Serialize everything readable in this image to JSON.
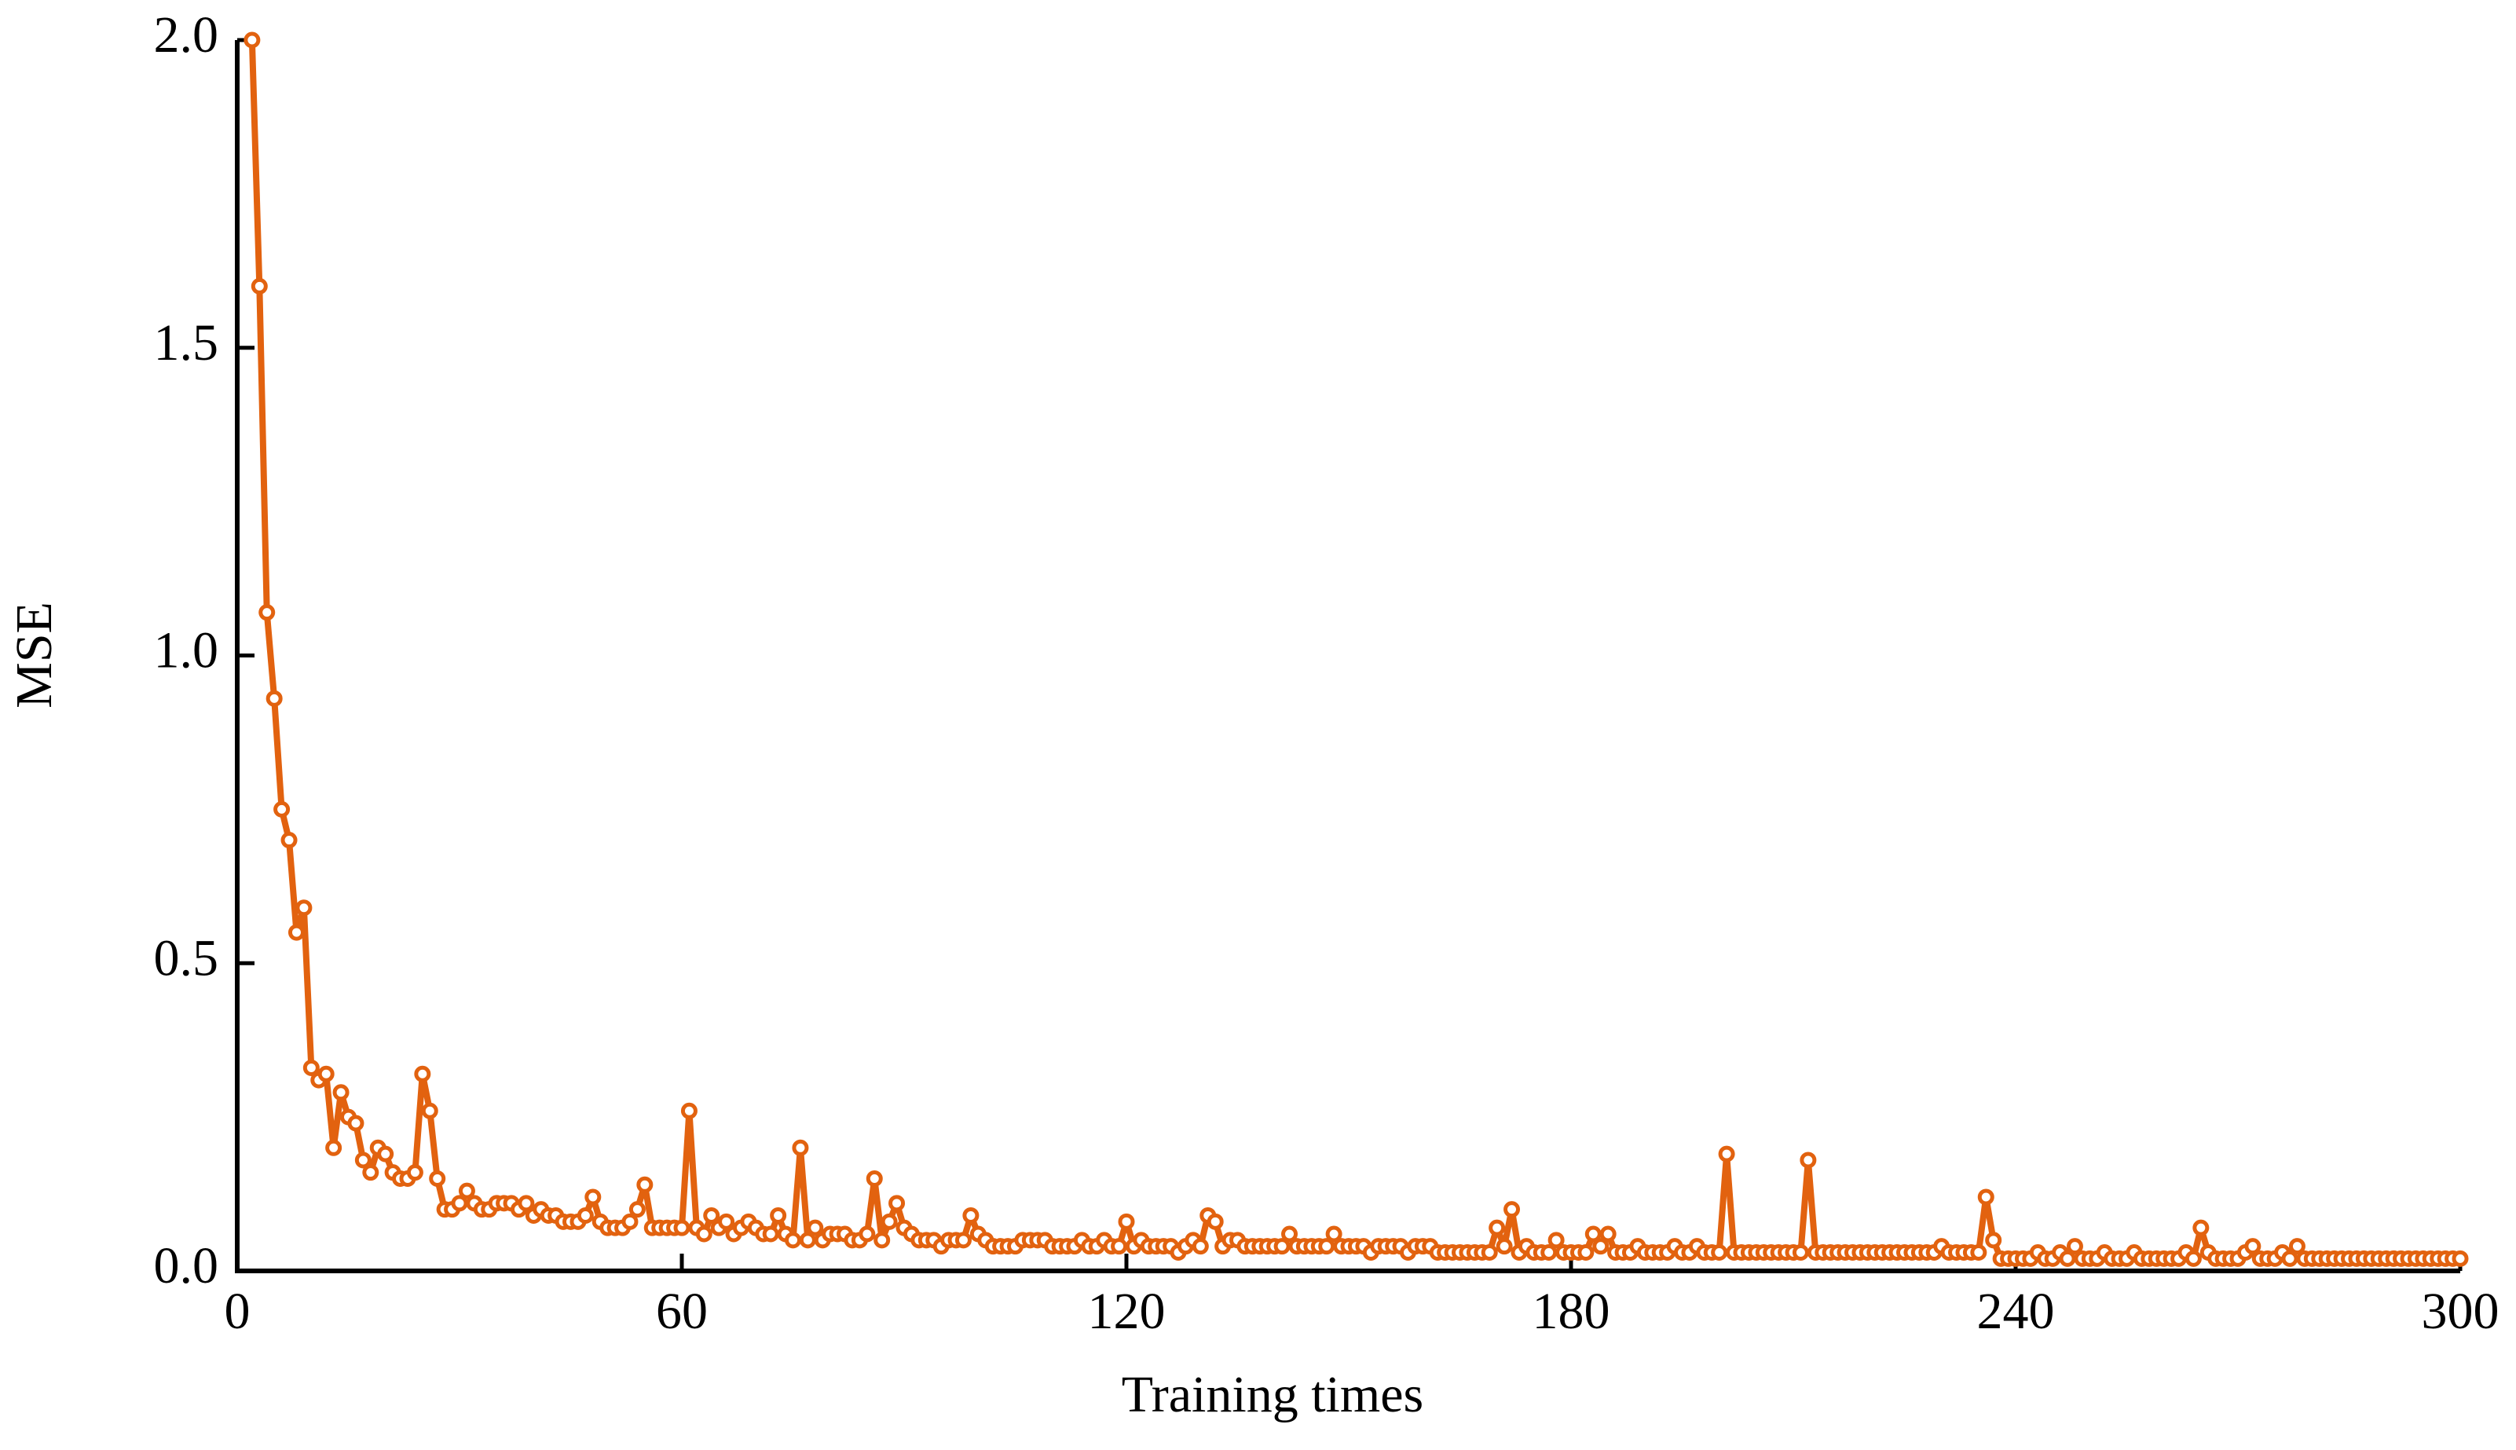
{
  "chart_data": {
    "type": "line",
    "xlabel": "Training times",
    "ylabel": "MSE",
    "color": "#e2620f",
    "xlim": [
      0,
      300
    ],
    "xticks": [
      0,
      60,
      120,
      180,
      240,
      300
    ],
    "ylim": [
      0,
      2
    ],
    "yticks": [
      {
        "value": 0,
        "label": "0.0"
      },
      0.5,
      {
        "value": 1,
        "label": "1.0"
      },
      1.5,
      {
        "value": 2,
        "label": "2.0"
      }
    ],
    "x": [
      2,
      3,
      4,
      5,
      6,
      7,
      8,
      9,
      10,
      11,
      12,
      13,
      14,
      15,
      16,
      17,
      18,
      19,
      20,
      21,
      22,
      23,
      24,
      25,
      26,
      27,
      28,
      29,
      30,
      31,
      32,
      33,
      34,
      35,
      36,
      37,
      38,
      39,
      40,
      41,
      42,
      43,
      44,
      45,
      46,
      47,
      48,
      49,
      50,
      51,
      52,
      53,
      54,
      55,
      56,
      57,
      58,
      59,
      60,
      61,
      62,
      63,
      64,
      65,
      66,
      67,
      68,
      69,
      70,
      71,
      72,
      73,
      74,
      75,
      76,
      77,
      78,
      79,
      80,
      81,
      82,
      83,
      84,
      85,
      86,
      87,
      88,
      89,
      90,
      91,
      92,
      93,
      94,
      95,
      96,
      97,
      98,
      99,
      100,
      101,
      102,
      103,
      104,
      105,
      106,
      107,
      108,
      109,
      110,
      111,
      112,
      113,
      114,
      115,
      116,
      117,
      118,
      119,
      120,
      121,
      122,
      123,
      124,
      125,
      126,
      127,
      128,
      129,
      130,
      131,
      132,
      133,
      134,
      135,
      136,
      137,
      138,
      139,
      140,
      141,
      142,
      143,
      144,
      145,
      146,
      147,
      148,
      149,
      150,
      151,
      152,
      153,
      154,
      155,
      156,
      157,
      158,
      159,
      160,
      161,
      162,
      163,
      164,
      165,
      166,
      167,
      168,
      169,
      170,
      171,
      172,
      173,
      174,
      175,
      176,
      177,
      178,
      179,
      180,
      181,
      182,
      183,
      184,
      185,
      186,
      187,
      188,
      189,
      190,
      191,
      192,
      193,
      194,
      195,
      196,
      197,
      198,
      199,
      200,
      201,
      202,
      203,
      204,
      205,
      206,
      207,
      208,
      209,
      210,
      211,
      212,
      213,
      214,
      215,
      216,
      217,
      218,
      219,
      220,
      221,
      222,
      223,
      224,
      225,
      226,
      227,
      228,
      229,
      230,
      231,
      232,
      233,
      234,
      235,
      236,
      237,
      238,
      239,
      240,
      241,
      242,
      243,
      244,
      245,
      246,
      247,
      248,
      249,
      250,
      251,
      252,
      253,
      254,
      255,
      256,
      257,
      258,
      259,
      260,
      261,
      262,
      263,
      264,
      265,
      266,
      267,
      268,
      269,
      270,
      271,
      272,
      273,
      274,
      275,
      276,
      277,
      278,
      279,
      280,
      281,
      282,
      283,
      284,
      285,
      286,
      287,
      288,
      289,
      290,
      291,
      292,
      293,
      294,
      295,
      296,
      297,
      298,
      299,
      300
    ],
    "values": [
      2.0,
      1.6,
      1.07,
      0.93,
      0.75,
      0.7,
      0.55,
      0.59,
      0.33,
      0.31,
      0.32,
      0.2,
      0.29,
      0.25,
      0.24,
      0.18,
      0.16,
      0.2,
      0.19,
      0.16,
      0.15,
      0.15,
      0.16,
      0.32,
      0.26,
      0.15,
      0.1,
      0.1,
      0.11,
      0.13,
      0.11,
      0.1,
      0.1,
      0.11,
      0.11,
      0.11,
      0.1,
      0.11,
      0.09,
      0.1,
      0.09,
      0.09,
      0.08,
      0.08,
      0.08,
      0.09,
      0.12,
      0.08,
      0.07,
      0.07,
      0.07,
      0.08,
      0.1,
      0.14,
      0.07,
      0.07,
      0.07,
      0.07,
      0.07,
      0.26,
      0.07,
      0.06,
      0.09,
      0.07,
      0.08,
      0.06,
      0.07,
      0.08,
      0.07,
      0.06,
      0.06,
      0.09,
      0.06,
      0.05,
      0.2,
      0.05,
      0.07,
      0.05,
      0.06,
      0.06,
      0.06,
      0.05,
      0.05,
      0.06,
      0.15,
      0.05,
      0.08,
      0.11,
      0.07,
      0.06,
      0.05,
      0.05,
      0.05,
      0.04,
      0.05,
      0.05,
      0.05,
      0.09,
      0.06,
      0.05,
      0.04,
      0.04,
      0.04,
      0.04,
      0.05,
      0.05,
      0.05,
      0.05,
      0.04,
      0.04,
      0.04,
      0.04,
      0.05,
      0.04,
      0.04,
      0.05,
      0.04,
      0.04,
      0.08,
      0.04,
      0.05,
      0.04,
      0.04,
      0.04,
      0.04,
      0.03,
      0.04,
      0.05,
      0.04,
      0.09,
      0.08,
      0.04,
      0.05,
      0.05,
      0.04,
      0.04,
      0.04,
      0.04,
      0.04,
      0.04,
      0.06,
      0.04,
      0.04,
      0.04,
      0.04,
      0.04,
      0.06,
      0.04,
      0.04,
      0.04,
      0.04,
      0.03,
      0.04,
      0.04,
      0.04,
      0.04,
      0.03,
      0.04,
      0.04,
      0.04,
      0.03,
      0.03,
      0.03,
      0.03,
      0.03,
      0.03,
      0.03,
      0.03,
      0.07,
      0.04,
      0.1,
      0.03,
      0.04,
      0.03,
      0.03,
      0.03,
      0.05,
      0.03,
      0.03,
      0.03,
      0.03,
      0.06,
      0.04,
      0.06,
      0.03,
      0.03,
      0.03,
      0.04,
      0.03,
      0.03,
      0.03,
      0.03,
      0.04,
      0.03,
      0.03,
      0.04,
      0.03,
      0.03,
      0.03,
      0.19,
      0.03,
      0.03,
      0.03,
      0.03,
      0.03,
      0.03,
      0.03,
      0.03,
      0.03,
      0.03,
      0.18,
      0.03,
      0.03,
      0.03,
      0.03,
      0.03,
      0.03,
      0.03,
      0.03,
      0.03,
      0.03,
      0.03,
      0.03,
      0.03,
      0.03,
      0.03,
      0.03,
      0.03,
      0.04,
      0.03,
      0.03,
      0.03,
      0.03,
      0.03,
      0.12,
      0.05,
      0.02,
      0.02,
      0.02,
      0.02,
      0.02,
      0.03,
      0.02,
      0.02,
      0.03,
      0.02,
      0.04,
      0.02,
      0.02,
      0.02,
      0.03,
      0.02,
      0.02,
      0.02,
      0.03,
      0.02,
      0.02,
      0.02,
      0.02,
      0.02,
      0.02,
      0.03,
      0.02,
      0.07,
      0.03,
      0.02,
      0.02,
      0.02,
      0.02,
      0.03,
      0.04,
      0.02,
      0.02,
      0.02,
      0.03,
      0.02,
      0.04,
      0.02,
      0.02,
      0.02,
      0.02,
      0.02,
      0.02,
      0.02,
      0.02,
      0.02,
      0.02,
      0.02,
      0.02,
      0.02,
      0.02,
      0.02,
      0.02,
      0.02,
      0.02,
      0.02,
      0.02,
      0.02,
      0.02
    ]
  }
}
